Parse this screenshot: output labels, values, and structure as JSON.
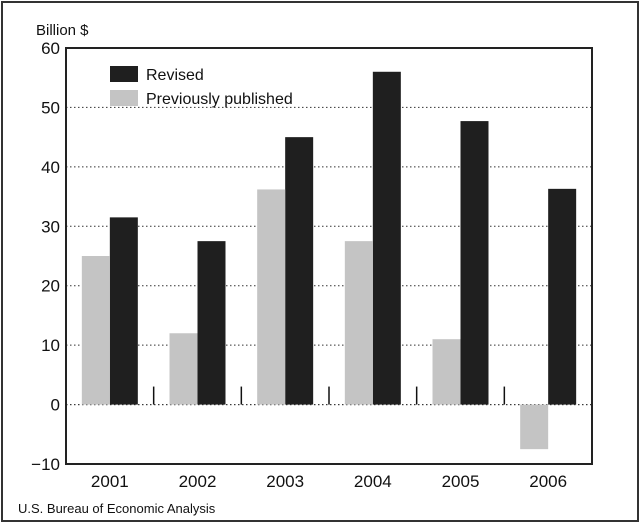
{
  "chart_data": {
    "type": "bar",
    "ylabel": "Billion $",
    "ylim": [
      -10,
      60
    ],
    "yticks": [
      -10,
      0,
      10,
      20,
      30,
      40,
      50,
      60
    ],
    "grid": "horizontal dotted",
    "legend_position": "top-left",
    "categories": [
      "2001",
      "2002",
      "2003",
      "2004",
      "2005",
      "2006"
    ],
    "series": [
      {
        "name": "Revised",
        "color": "#1f1f1f",
        "values": [
          31.5,
          27.5,
          45,
          56,
          47.7,
          36.3
        ]
      },
      {
        "name": "Previously published",
        "color": "#c4c4c4",
        "values": [
          25,
          12,
          36.2,
          27.5,
          11,
          -7.5
        ]
      }
    ],
    "source": "U.S. Bureau of Economic Analysis"
  }
}
